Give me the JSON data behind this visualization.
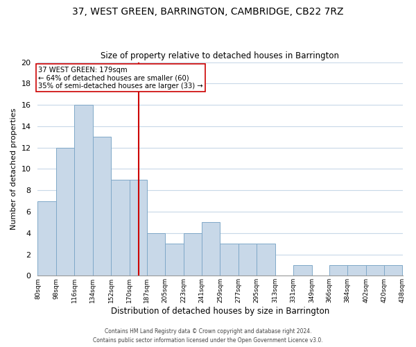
{
  "title_line1": "37, WEST GREEN, BARRINGTON, CAMBRIDGE, CB22 7RZ",
  "title_line2": "Size of property relative to detached houses in Barrington",
  "xlabel": "Distribution of detached houses by size in Barrington",
  "ylabel": "Number of detached properties",
  "bar_color": "#c8d8e8",
  "bar_edge_color": "#7fa8c8",
  "grid_color": "#c8d8e8",
  "reference_line_x": 179,
  "reference_line_color": "#cc0000",
  "annotation_title": "37 WEST GREEN: 179sqm",
  "annotation_line1": "← 64% of detached houses are smaller (60)",
  "annotation_line2": "35% of semi-detached houses are larger (33) →",
  "annotation_box_color": "#ffffff",
  "annotation_box_edge": "#cc0000",
  "bins": [
    80,
    98,
    116,
    134,
    152,
    170,
    187,
    205,
    223,
    241,
    259,
    277,
    295,
    313,
    331,
    349,
    366,
    384,
    402,
    420,
    438
  ],
  "counts": [
    7,
    12,
    16,
    13,
    9,
    9,
    4,
    3,
    4,
    5,
    3,
    3,
    3,
    0,
    1,
    0,
    1,
    1,
    1,
    1
  ],
  "tick_labels": [
    "80sqm",
    "98sqm",
    "116sqm",
    "134sqm",
    "152sqm",
    "170sqm",
    "187sqm",
    "205sqm",
    "223sqm",
    "241sqm",
    "259sqm",
    "277sqm",
    "295sqm",
    "313sqm",
    "331sqm",
    "349sqm",
    "366sqm",
    "384sqm",
    "402sqm",
    "420sqm",
    "438sqm"
  ],
  "ylim": [
    0,
    20
  ],
  "yticks": [
    0,
    2,
    4,
    6,
    8,
    10,
    12,
    14,
    16,
    18,
    20
  ],
  "footer_line1": "Contains HM Land Registry data © Crown copyright and database right 2024.",
  "footer_line2": "Contains public sector information licensed under the Open Government Licence v3.0."
}
